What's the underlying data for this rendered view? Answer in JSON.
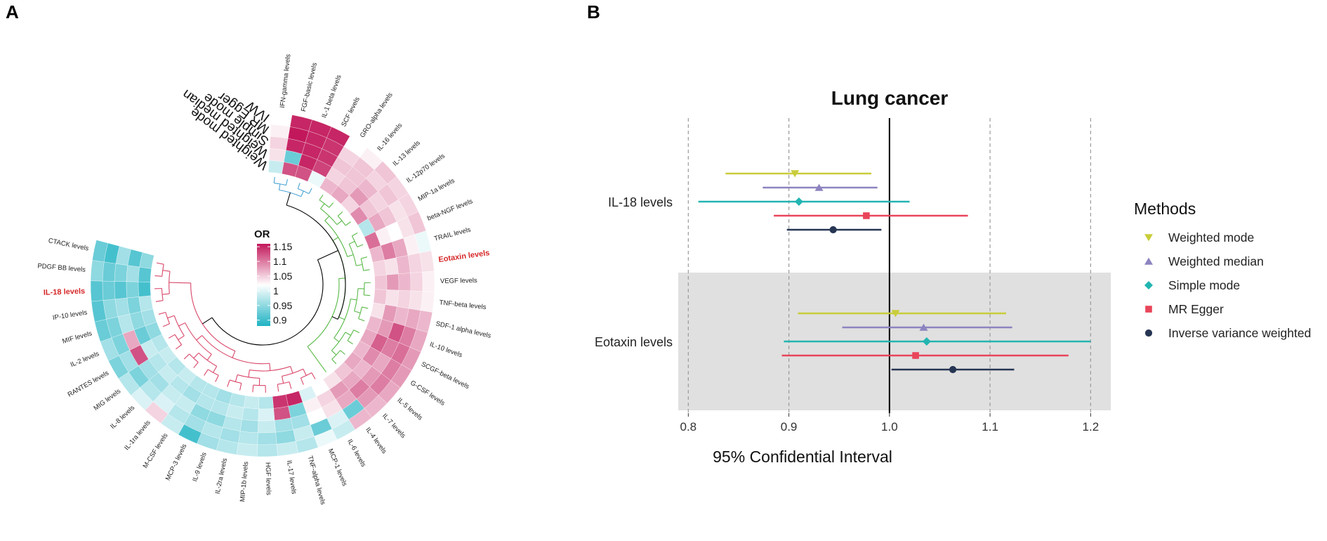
{
  "panels": {
    "a_label": "A",
    "b_label": "B"
  },
  "colors": {
    "high": "#c2185b",
    "mid": "#ffffff",
    "low": "#1fb3c3",
    "tree_cyan": "#4aa3d6",
    "tree_green": "#58b947",
    "tree_red": "#d9476a",
    "tree_black": "#000000",
    "highlight_label": "#d62728",
    "band": "#e0e0e0"
  },
  "chart_data": [
    {
      "type": "heatmap",
      "layout": "circular",
      "title": "",
      "legend": {
        "title": "OR",
        "ticks": [
          "1.15",
          "1.1",
          "1.05",
          "1",
          "0.95",
          "0.9"
        ],
        "min": 0.88,
        "max": 1.16
      },
      "rings": [
        "IVW",
        "MR Egger",
        "Simple mode",
        "Weighted median",
        "Weighted mode"
      ],
      "highlighted": [
        "Eotaxin levels",
        "IL-18 levels"
      ],
      "clusters": [
        {
          "name": "cyan",
          "members": [
            "IFN-gamma levels",
            "FGF-basic levels",
            "IL-1 beta levels",
            "SCF levels"
          ]
        },
        {
          "name": "green",
          "members": [
            "GRO-alpha levels",
            "IL-16 levels",
            "IL-13 levels",
            "IL-12p70 levels",
            "MIP-1a levels",
            "beta-NGF levels",
            "TRAIL levels",
            "Eotaxin levels",
            "VEGF levels",
            "TNF-beta levels",
            "SDF-1 alpha levels",
            "IL-10 levels",
            "SCGF-beta levels",
            "G-CSF levels",
            "IL-5 levels",
            "IL-7 levels",
            "IL-4 levels"
          ]
        },
        {
          "name": "red",
          "members": [
            "IL-6 levels",
            "MCP-1 levels",
            "TNF-alpha levels",
            "IL-17 levels",
            "HGF levels",
            "MIP-1b levels",
            "IL-2ra levels",
            "IL-9 levels",
            "MCP-3 levels",
            "M-CSF levels",
            "IL-1ra levels",
            "IL-8 levels",
            "MIG levels",
            "RANTES levels",
            "IL-2 levels",
            "MIF levels",
            "IP-10 levels",
            "IL-18 levels",
            "PDGF BB levels",
            "CTACK levels"
          ]
        }
      ],
      "rows": [
        {
          "name": "IFN-gamma levels",
          "values": [
            1.0,
            1.01,
            1.03,
            1.02,
            0.97
          ]
        },
        {
          "name": "FGF-basic levels",
          "values": [
            1.15,
            1.16,
            1.15,
            0.92,
            1.12
          ]
        },
        {
          "name": "IL-1 beta levels",
          "values": [
            1.15,
            1.15,
            1.15,
            1.15,
            1.12
          ]
        },
        {
          "name": "SCF levels",
          "values": [
            1.15,
            1.14,
            1.14,
            1.13,
            0.99
          ]
        },
        {
          "name": "GRO-alpha levels",
          "values": [
            1.0,
            1.03,
            1.04,
            1.03,
            1.05
          ]
        },
        {
          "name": "IL-16 levels",
          "values": [
            1.01,
            1.04,
            1.04,
            1.04,
            1.06
          ]
        },
        {
          "name": "IL-13 levels",
          "values": [
            1.04,
            1.03,
            1.05,
            1.07,
            1.03
          ]
        },
        {
          "name": "IL-12p70 levels",
          "values": [
            1.03,
            1.04,
            1.03,
            1.04,
            1.08
          ]
        },
        {
          "name": "MIP-1a levels",
          "values": [
            1.03,
            1.02,
            1.04,
            1.06,
            0.96
          ]
        },
        {
          "name": "beta-NGF levels",
          "values": [
            1.04,
            1.02,
            1.0,
            1.01,
            1.1
          ]
        },
        {
          "name": "TRAIL levels",
          "values": [
            0.99,
            1.01,
            1.06,
            1.09,
            1.05
          ]
        },
        {
          "name": "Eotaxin levels",
          "values": [
            1.02,
            1.03,
            1.05,
            1.02,
            1.03
          ]
        },
        {
          "name": "VEGF levels",
          "values": [
            1.01,
            1.03,
            1.05,
            1.07,
            1.04
          ]
        },
        {
          "name": "TNF-beta levels",
          "values": [
            1.01,
            1.02,
            1.03,
            1.02,
            1.04
          ]
        },
        {
          "name": "SDF-1 alpha levels",
          "values": [
            1.05,
            1.06,
            1.05,
            1.07,
            1.02
          ]
        },
        {
          "name": "IL-10 levels",
          "values": [
            1.06,
            1.09,
            1.12,
            1.07,
            1.05
          ]
        },
        {
          "name": "SCGF-beta levels",
          "values": [
            1.07,
            1.1,
            1.09,
            1.11,
            1.06
          ]
        },
        {
          "name": "G-CSF levels",
          "values": [
            1.07,
            1.09,
            1.06,
            1.08,
            1.05
          ]
        },
        {
          "name": "IL-5 levels",
          "values": [
            1.06,
            1.09,
            1.07,
            1.05,
            1.06
          ]
        },
        {
          "name": "IL-7 levels",
          "values": [
            1.05,
            1.07,
            1.09,
            1.06,
            1.04
          ]
        },
        {
          "name": "IL-4 levels",
          "values": [
            1.05,
            0.92,
            1.06,
            1.07,
            1.02
          ]
        },
        {
          "name": "IL-6 levels",
          "values": [
            0.97,
            0.98,
            1.02,
            1.03,
            1.0
          ]
        },
        {
          "name": "MCP-1 levels",
          "values": [
            0.99,
            0.92,
            1.0,
            1.01,
            0.98
          ]
        },
        {
          "name": "TNF-alpha levels",
          "values": [
            0.96,
            0.97,
            0.95,
            0.93,
            1.15
          ]
        },
        {
          "name": "IL-17 levels",
          "values": [
            0.97,
            0.94,
            0.95,
            1.12,
            1.14
          ]
        },
        {
          "name": "HGF levels",
          "values": [
            0.96,
            0.95,
            0.97,
            0.98,
            0.96
          ]
        },
        {
          "name": "MIP-1b levels",
          "values": [
            0.97,
            0.96,
            0.95,
            0.96,
            0.97
          ]
        },
        {
          "name": "IL-2ra levels",
          "values": [
            0.96,
            0.95,
            0.96,
            0.97,
            0.96
          ]
        },
        {
          "name": "IL-9 levels",
          "values": [
            0.95,
            0.96,
            0.94,
            0.96,
            0.95
          ]
        },
        {
          "name": "MCP-3 levels",
          "values": [
            0.9,
            0.95,
            0.94,
            0.96,
            0.96
          ]
        },
        {
          "name": "M-CSF levels",
          "values": [
            0.97,
            0.96,
            0.97,
            0.95,
            0.96
          ]
        },
        {
          "name": "IL-1ra levels",
          "values": [
            1.03,
            0.98,
            0.97,
            0.96,
            0.97
          ]
        },
        {
          "name": "IL-8 levels",
          "values": [
            0.98,
            0.96,
            0.95,
            0.97,
            0.96
          ]
        },
        {
          "name": "MIG levels",
          "values": [
            0.96,
            0.93,
            0.95,
            0.96,
            0.97
          ]
        },
        {
          "name": "RANTES levels",
          "values": [
            0.93,
            0.95,
            1.12,
            0.97,
            0.96
          ]
        },
        {
          "name": "IL-2 levels",
          "values": [
            0.95,
            0.93,
            1.06,
            0.92,
            0.94
          ]
        },
        {
          "name": "MIF levels",
          "values": [
            0.92,
            0.93,
            0.96,
            0.94,
            0.95
          ]
        },
        {
          "name": "IP-10 levels",
          "values": [
            0.91,
            0.94,
            0.95,
            0.93,
            0.96
          ]
        },
        {
          "name": "IL-18 levels",
          "values": [
            0.91,
            0.92,
            0.91,
            0.93,
            0.9
          ]
        },
        {
          "name": "PDGF BB levels",
          "values": [
            0.94,
            0.92,
            0.93,
            0.95,
            0.91
          ]
        },
        {
          "name": "CTACK levels",
          "values": [
            0.92,
            0.9,
            0.95,
            0.91,
            0.94
          ]
        }
      ]
    },
    {
      "type": "forest",
      "title": "Lung cancer",
      "xlabel": "95% Confidential Interval",
      "xlim": [
        0.79,
        1.22
      ],
      "xticks": [
        "0.8",
        "0.9",
        "1.0",
        "1.1",
        "1.2"
      ],
      "reference_line": 1.0,
      "groups": [
        {
          "label": "IL-18 levels",
          "shaded": false,
          "estimates": [
            {
              "method": "Weighted mode",
              "or": 0.906,
              "lo": 0.837,
              "hi": 0.982
            },
            {
              "method": "Weighted median",
              "or": 0.93,
              "lo": 0.874,
              "hi": 0.988
            },
            {
              "method": "Simple mode",
              "or": 0.91,
              "lo": 0.81,
              "hi": 1.02
            },
            {
              "method": "MR Egger",
              "or": 0.977,
              "lo": 0.885,
              "hi": 1.078
            },
            {
              "method": "Inverse variance weighted",
              "or": 0.944,
              "lo": 0.898,
              "hi": 0.992
            }
          ]
        },
        {
          "label": "Eotaxin levels",
          "shaded": true,
          "estimates": [
            {
              "method": "Weighted mode",
              "or": 1.006,
              "lo": 0.909,
              "hi": 1.116
            },
            {
              "method": "Weighted median",
              "or": 1.034,
              "lo": 0.953,
              "hi": 1.122
            },
            {
              "method": "Simple mode",
              "or": 1.037,
              "lo": 0.895,
              "hi": 1.2
            },
            {
              "method": "MR Egger",
              "or": 1.026,
              "lo": 0.893,
              "hi": 1.178
            },
            {
              "method": "Inverse variance weighted",
              "or": 1.063,
              "lo": 1.002,
              "hi": 1.124
            }
          ]
        }
      ],
      "legend": {
        "title": "Methods",
        "items": [
          {
            "label": "Weighted mode",
            "color": "#c9cd3a",
            "shape": "triangle-down"
          },
          {
            "label": "Weighted median",
            "color": "#8c84c0",
            "shape": "triangle-up"
          },
          {
            "label": "Simple mode",
            "color": "#22b5b1",
            "shape": "diamond"
          },
          {
            "label": "MR Egger",
            "color": "#e9455a",
            "shape": "square"
          },
          {
            "label": "Inverse variance weighted",
            "color": "#263553",
            "shape": "circle"
          }
        ]
      }
    }
  ]
}
